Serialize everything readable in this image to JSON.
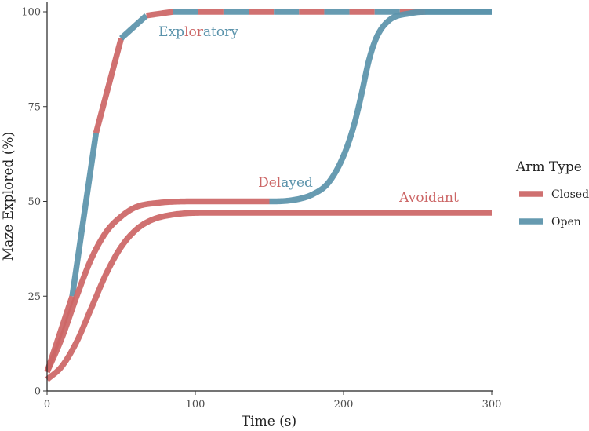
{
  "chart_data": {
    "type": "line",
    "title": "",
    "xlabel": "Time (s)",
    "ylabel": "Maze Explored (%)",
    "xlim": [
      0,
      300
    ],
    "ylim": [
      0,
      100
    ],
    "xticks": [
      0,
      100,
      200,
      300
    ],
    "yticks": [
      0,
      25,
      50,
      75,
      100
    ],
    "grid": false,
    "legend": {
      "title": "Arm Type",
      "placement": "right",
      "entries": [
        {
          "label": "Closed",
          "color": "#cc6666"
        },
        {
          "label": "Open",
          "color": "#5b93ab"
        }
      ]
    },
    "colors": {
      "Closed": "#cc6666",
      "Open": "#5b93ab"
    },
    "series": [
      {
        "name": "Exploratory",
        "annotation_chars": [
          {
            "c": "Exp",
            "arm": "Open"
          },
          {
            "c": "lor",
            "arm": "Closed"
          },
          {
            "c": "atory",
            "arm": "Open"
          }
        ],
        "points": [
          {
            "x": 0,
            "y": 5
          },
          {
            "x": 17,
            "y": 25
          },
          {
            "x": 33,
            "y": 68
          },
          {
            "x": 50,
            "y": 93
          },
          {
            "x": 67,
            "y": 99
          },
          {
            "x": 85,
            "y": 100
          },
          {
            "x": 300,
            "y": 100
          }
        ],
        "segments": [
          {
            "x0": 0,
            "x1": 17,
            "arm": "Closed"
          },
          {
            "x0": 17,
            "x1": 33,
            "arm": "Open"
          },
          {
            "x0": 33,
            "x1": 50,
            "arm": "Closed"
          },
          {
            "x0": 50,
            "x1": 67,
            "arm": "Open"
          },
          {
            "x0": 67,
            "x1": 85,
            "arm": "Closed"
          },
          {
            "x0": 85,
            "x1": 102,
            "arm": "Open"
          },
          {
            "x0": 102,
            "x1": 119,
            "arm": "Closed"
          },
          {
            "x0": 119,
            "x1": 136,
            "arm": "Open"
          },
          {
            "x0": 136,
            "x1": 153,
            "arm": "Closed"
          },
          {
            "x0": 153,
            "x1": 170,
            "arm": "Open"
          },
          {
            "x0": 170,
            "x1": 187,
            "arm": "Closed"
          },
          {
            "x0": 187,
            "x1": 204,
            "arm": "Open"
          },
          {
            "x0": 204,
            "x1": 221,
            "arm": "Closed"
          },
          {
            "x0": 221,
            "x1": 238,
            "arm": "Open"
          },
          {
            "x0": 238,
            "x1": 255,
            "arm": "Closed"
          },
          {
            "x0": 255,
            "x1": 300,
            "arm": "Open"
          }
        ]
      },
      {
        "name": "Delayed",
        "annotation_chars": [
          {
            "c": "Del",
            "arm": "Closed"
          },
          {
            "c": "ayed",
            "arm": "Open"
          }
        ],
        "points": [
          {
            "x": 0,
            "y": 5
          },
          {
            "x": 10,
            "y": 14
          },
          {
            "x": 20,
            "y": 25
          },
          {
            "x": 30,
            "y": 35
          },
          {
            "x": 40,
            "y": 42
          },
          {
            "x": 50,
            "y": 46
          },
          {
            "x": 60,
            "y": 48.5
          },
          {
            "x": 75,
            "y": 49.6
          },
          {
            "x": 100,
            "y": 50
          },
          {
            "x": 150,
            "y": 50
          },
          {
            "x": 165,
            "y": 50.3
          },
          {
            "x": 180,
            "y": 52
          },
          {
            "x": 190,
            "y": 55
          },
          {
            "x": 200,
            "y": 62
          },
          {
            "x": 207,
            "y": 70
          },
          {
            "x": 212,
            "y": 78
          },
          {
            "x": 217,
            "y": 87
          },
          {
            "x": 222,
            "y": 93
          },
          {
            "x": 230,
            "y": 97.5
          },
          {
            "x": 245,
            "y": 99.6
          },
          {
            "x": 260,
            "y": 100
          },
          {
            "x": 300,
            "y": 100
          }
        ],
        "segments": [
          {
            "x0": 0,
            "x1": 150,
            "arm": "Closed"
          },
          {
            "x0": 150,
            "x1": 300,
            "arm": "Open"
          }
        ]
      },
      {
        "name": "Avoidant",
        "annotation_chars": [
          {
            "c": "Avoidant",
            "arm": "Closed"
          }
        ],
        "points": [
          {
            "x": 0,
            "y": 3
          },
          {
            "x": 10,
            "y": 6.5
          },
          {
            "x": 20,
            "y": 13
          },
          {
            "x": 30,
            "y": 22
          },
          {
            "x": 40,
            "y": 31
          },
          {
            "x": 50,
            "y": 38
          },
          {
            "x": 60,
            "y": 42.5
          },
          {
            "x": 70,
            "y": 45
          },
          {
            "x": 85,
            "y": 46.5
          },
          {
            "x": 110,
            "y": 47
          },
          {
            "x": 300,
            "y": 47
          }
        ],
        "segments": [
          {
            "x0": 0,
            "x1": 300,
            "arm": "Closed"
          }
        ]
      }
    ]
  }
}
